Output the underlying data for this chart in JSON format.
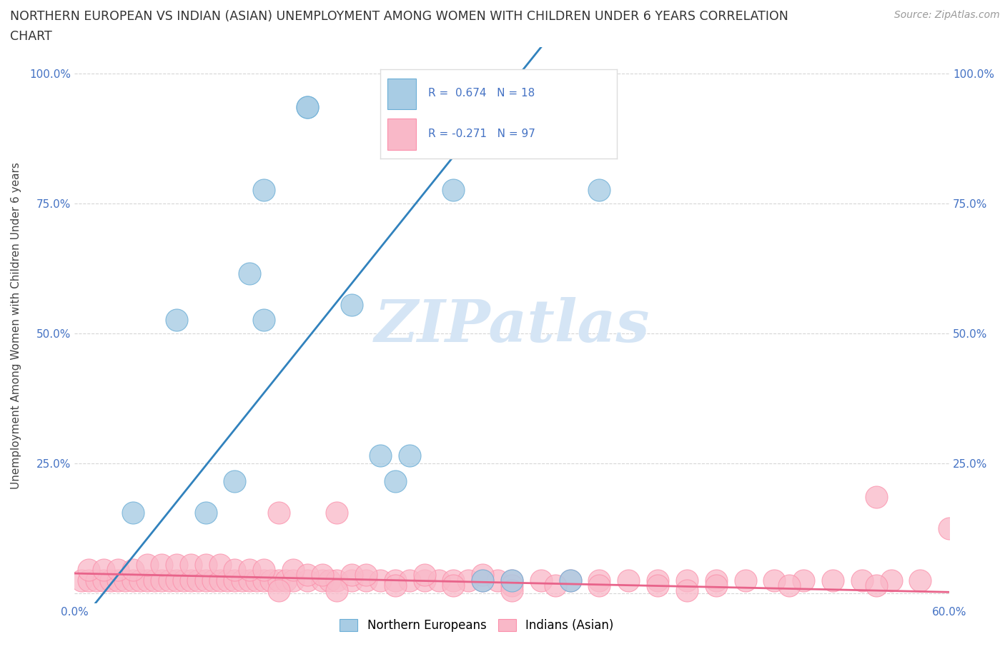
{
  "title_line1": "NORTHERN EUROPEAN VS INDIAN (ASIAN) UNEMPLOYMENT AMONG WOMEN WITH CHILDREN UNDER 6 YEARS CORRELATION",
  "title_line2": "CHART",
  "source": "Source: ZipAtlas.com",
  "ylabel": "Unemployment Among Women with Children Under 6 years",
  "xlim": [
    0.0,
    0.6
  ],
  "ylim": [
    -0.02,
    1.05
  ],
  "blue_R": 0.674,
  "blue_N": 18,
  "pink_R": -0.271,
  "pink_N": 97,
  "blue_color": "#a8cce4",
  "pink_color": "#f9b8c8",
  "blue_edge_color": "#6baed6",
  "pink_edge_color": "#fb8faa",
  "blue_line_color": "#3182bd",
  "pink_line_color": "#e8638a",
  "tick_label_color": "#4472c4",
  "watermark_color": "#d5e5f5",
  "blue_scatter_x": [
    0.04,
    0.07,
    0.09,
    0.11,
    0.12,
    0.13,
    0.13,
    0.16,
    0.16,
    0.19,
    0.21,
    0.22,
    0.23,
    0.26,
    0.28,
    0.3,
    0.34,
    0.36
  ],
  "blue_scatter_y": [
    0.155,
    0.525,
    0.155,
    0.215,
    0.615,
    0.775,
    0.525,
    0.935,
    0.935,
    0.555,
    0.265,
    0.215,
    0.265,
    0.775,
    0.025,
    0.025,
    0.025,
    0.775
  ],
  "pink_scatter_x": [
    0.005,
    0.01,
    0.015,
    0.02,
    0.025,
    0.03,
    0.035,
    0.04,
    0.045,
    0.05,
    0.055,
    0.06,
    0.065,
    0.07,
    0.075,
    0.08,
    0.085,
    0.09,
    0.095,
    0.1,
    0.105,
    0.11,
    0.115,
    0.12,
    0.125,
    0.13,
    0.135,
    0.14,
    0.145,
    0.15,
    0.16,
    0.17,
    0.175,
    0.18,
    0.19,
    0.2,
    0.21,
    0.22,
    0.23,
    0.24,
    0.25,
    0.26,
    0.27,
    0.28,
    0.29,
    0.3,
    0.32,
    0.34,
    0.36,
    0.38,
    0.4,
    0.42,
    0.44,
    0.46,
    0.48,
    0.5,
    0.52,
    0.54,
    0.56,
    0.58,
    0.01,
    0.02,
    0.03,
    0.04,
    0.05,
    0.06,
    0.07,
    0.08,
    0.09,
    0.1,
    0.11,
    0.12,
    0.13,
    0.14,
    0.15,
    0.16,
    0.17,
    0.18,
    0.19,
    0.2,
    0.22,
    0.24,
    0.26,
    0.28,
    0.3,
    0.33,
    0.36,
    0.4,
    0.44,
    0.49,
    0.55,
    0.6,
    0.14,
    0.18,
    0.3,
    0.42,
    0.55
  ],
  "pink_scatter_y": [
    0.025,
    0.025,
    0.025,
    0.025,
    0.025,
    0.025,
    0.025,
    0.025,
    0.025,
    0.025,
    0.025,
    0.025,
    0.025,
    0.025,
    0.025,
    0.025,
    0.025,
    0.025,
    0.025,
    0.025,
    0.025,
    0.025,
    0.025,
    0.025,
    0.025,
    0.025,
    0.025,
    0.025,
    0.025,
    0.025,
    0.025,
    0.025,
    0.025,
    0.025,
    0.025,
    0.025,
    0.025,
    0.025,
    0.025,
    0.025,
    0.025,
    0.025,
    0.025,
    0.025,
    0.025,
    0.025,
    0.025,
    0.025,
    0.025,
    0.025,
    0.025,
    0.025,
    0.025,
    0.025,
    0.025,
    0.025,
    0.025,
    0.025,
    0.025,
    0.025,
    0.045,
    0.045,
    0.045,
    0.045,
    0.055,
    0.055,
    0.055,
    0.055,
    0.055,
    0.055,
    0.045,
    0.045,
    0.045,
    0.155,
    0.045,
    0.035,
    0.035,
    0.155,
    0.035,
    0.035,
    0.015,
    0.035,
    0.015,
    0.035,
    0.015,
    0.015,
    0.015,
    0.015,
    0.015,
    0.015,
    0.015,
    0.125,
    0.005,
    0.005,
    0.005,
    0.005,
    0.185
  ]
}
